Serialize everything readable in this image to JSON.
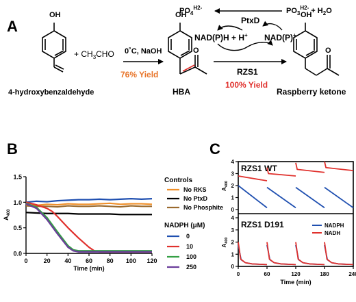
{
  "panel_a": {
    "label": "A",
    "reactant1_name": "4-hydroxybenzaldehyde",
    "reactant1_oh": "OH",
    "plus_acetaldehyde": "+ CH",
    "acetaldehyde_sub": "3",
    "acetaldehyde_tail": "CHO",
    "conditions": "0˚C, NaOH",
    "yield1": "76% Yield",
    "intermediate_name": "HBA",
    "intermediate_oh": "OH",
    "enzyme": "RZS1",
    "yield2": "100% Yield",
    "product_name": "Raspberry ketone",
    "product_oh": "OH",
    "ptxd": "PtxD",
    "phosphate": "PO",
    "phosphate_sub": "4",
    "phosphate_sup": "H2-",
    "phosphite": "PO",
    "phosphite_sub": "3",
    "phosphite_sup": "H2-",
    "phosphite_tail": " + H",
    "phosphite_tail_sub": "2",
    "phosphite_tail_end": "O",
    "nadph_left": "NAD(P)H + H",
    "nadph_left_sup": "+",
    "nadp_right": "NAD(P)",
    "nadp_right_sup": "+",
    "yield1_color": "#e8752a",
    "yield2_color": "#e0312d",
    "double_bond_color": "#e0312d"
  },
  "panel_b": {
    "label": "B",
    "chart_data": {
      "type": "line",
      "xlabel": "Time (min)",
      "ylabel": "A",
      "ylabel_sub": "400",
      "xlim": [
        0,
        120
      ],
      "ylim": [
        0,
        1.5
      ],
      "xticks": [
        "0",
        "20",
        "40",
        "60",
        "80",
        "100",
        "120"
      ],
      "yticks": [
        "0.0",
        "0.5",
        "1.0",
        "1.5"
      ],
      "series": [
        {
          "name": "No RKS",
          "group": "Controls",
          "color": "#f0902a",
          "x": [
            0,
            10,
            20,
            30,
            40,
            50,
            60,
            70,
            80,
            90,
            100,
            110,
            120
          ],
          "y": [
            0.95,
            0.94,
            0.96,
            0.95,
            0.97,
            0.96,
            0.96,
            0.97,
            0.98,
            0.96,
            0.97,
            0.97,
            0.96
          ]
        },
        {
          "name": "No PtxD",
          "group": "Controls",
          "color": "#000000",
          "x": [
            0,
            10,
            20,
            30,
            40,
            50,
            60,
            70,
            80,
            90,
            100,
            110,
            120
          ],
          "y": [
            0.8,
            0.79,
            0.78,
            0.78,
            0.78,
            0.77,
            0.77,
            0.77,
            0.77,
            0.76,
            0.76,
            0.76,
            0.76
          ]
        },
        {
          "name": "No Phosphite",
          "group": "Controls",
          "color": "#9a6a2e",
          "x": [
            0,
            10,
            20,
            30,
            40,
            50,
            60,
            70,
            80,
            90,
            100,
            110,
            120
          ],
          "y": [
            0.93,
            0.92,
            0.92,
            0.91,
            0.93,
            0.92,
            0.92,
            0.93,
            0.92,
            0.91,
            0.93,
            0.92,
            0.92
          ]
        },
        {
          "name": "0",
          "group": "NADPH (μM)",
          "color": "#1f4fb0",
          "x": [
            0,
            10,
            20,
            30,
            40,
            50,
            60,
            70,
            80,
            90,
            100,
            110,
            120
          ],
          "y": [
            1.0,
            1.02,
            1.01,
            1.03,
            1.04,
            1.05,
            1.05,
            1.06,
            1.05,
            1.06,
            1.07,
            1.06,
            1.07
          ]
        },
        {
          "name": "10",
          "group": "NADPH (μM)",
          "color": "#e0312d",
          "x": [
            0,
            10,
            20,
            25,
            30,
            40,
            50,
            60,
            65,
            70,
            80,
            100,
            120
          ],
          "y": [
            1.0,
            0.95,
            0.88,
            0.82,
            0.72,
            0.5,
            0.3,
            0.12,
            0.05,
            0.03,
            0.03,
            0.03,
            0.03
          ]
        },
        {
          "name": "100",
          "group": "NADPH (μM)",
          "color": "#35a045",
          "x": [
            0,
            10,
            20,
            30,
            40,
            45,
            50,
            60,
            80,
            100,
            120
          ],
          "y": [
            0.98,
            0.9,
            0.7,
            0.42,
            0.15,
            0.07,
            0.05,
            0.05,
            0.05,
            0.05,
            0.05
          ]
        },
        {
          "name": "250",
          "group": "NADPH (μM)",
          "color": "#6a3d9a",
          "x": [
            0,
            10,
            20,
            30,
            40,
            45,
            50,
            60,
            80,
            100,
            120
          ],
          "y": [
            0.97,
            0.88,
            0.66,
            0.38,
            0.12,
            0.05,
            0.03,
            0.03,
            0.03,
            0.03,
            0.03
          ]
        }
      ],
      "legend_placement": "right",
      "legend_group1_title": "Controls",
      "legend_group2_title": "NADPH (μM)"
    }
  },
  "panel_c": {
    "label": "C",
    "chart_data": [
      {
        "type": "line",
        "title": "RZS1 WT",
        "ylabel": "A",
        "ylabel_sub": "400",
        "xlim": [
          0,
          240
        ],
        "ylim": [
          0,
          4
        ],
        "yticks": [
          "0",
          "1",
          "2",
          "3",
          "4"
        ],
        "series": [
          {
            "name": "NADPH",
            "color": "#1f4fb0",
            "segments": [
              [
                [
                  0,
                  2.0
                ],
                [
                  60,
                  0.15
                ]
              ],
              [
                [
                  60,
                  1.85
                ],
                [
                  120,
                  0.15
                ]
              ],
              [
                [
                  120,
                  1.85
                ],
                [
                  180,
                  0.15
                ]
              ],
              [
                [
                  180,
                  1.85
                ],
                [
                  240,
                  0.15
                ]
              ]
            ]
          },
          {
            "name": "NADH",
            "color": "#e0312d",
            "segments": [
              [
                [
                  0,
                  2.8
                ],
                [
                  60,
                  2.4
                ]
              ],
              [
                [
                  60,
                  3.5
                ],
                [
                  63,
                  3.0
                ],
                [
                  120,
                  2.8
                ]
              ],
              [
                [
                  120,
                  3.9
                ],
                [
                  123,
                  3.35
                ],
                [
                  180,
                  3.1
                ]
              ],
              [
                [
                  180,
                  4.0
                ],
                [
                  183,
                  3.5
                ],
                [
                  240,
                  3.25
                ]
              ]
            ]
          }
        ]
      },
      {
        "type": "line",
        "title": "RZS1 D191",
        "ylabel": "A",
        "ylabel_sub": "400",
        "xlabel": "Time (min)",
        "xlim": [
          0,
          240
        ],
        "ylim": [
          0,
          4
        ],
        "xticks": [
          "0",
          "60",
          "120",
          "180",
          "240"
        ],
        "yticks": [
          "0",
          "1",
          "2",
          "3",
          "4"
        ],
        "legend": [
          "NADPH",
          "NADH"
        ],
        "legend_placement": "top-right",
        "series": [
          {
            "name": "NADPH",
            "color": "#1f4fb0",
            "segments": [
              [
                [
                  0,
                  1.75
                ],
                [
                  6,
                  0.55
                ],
                [
                  15,
                  0.3
                ],
                [
                  30,
                  0.2
                ],
                [
                  60,
                  0.15
                ]
              ],
              [
                [
                  60,
                  1.75
                ],
                [
                  66,
                  0.55
                ],
                [
                  75,
                  0.3
                ],
                [
                  90,
                  0.2
                ],
                [
                  120,
                  0.15
                ]
              ],
              [
                [
                  120,
                  1.75
                ],
                [
                  126,
                  0.55
                ],
                [
                  135,
                  0.3
                ],
                [
                  150,
                  0.2
                ],
                [
                  180,
                  0.15
                ]
              ],
              [
                [
                  180,
                  1.75
                ],
                [
                  186,
                  0.55
                ],
                [
                  195,
                  0.3
                ],
                [
                  210,
                  0.2
                ],
                [
                  240,
                  0.15
                ]
              ]
            ]
          },
          {
            "name": "NADH",
            "color": "#e0312d",
            "segments": [
              [
                [
                  0,
                  2.0
                ],
                [
                  5,
                  0.6
                ],
                [
                  15,
                  0.3
                ],
                [
                  30,
                  0.2
                ],
                [
                  60,
                  0.15
                ]
              ],
              [
                [
                  60,
                  2.0
                ],
                [
                  65,
                  0.6
                ],
                [
                  75,
                  0.3
                ],
                [
                  90,
                  0.2
                ],
                [
                  120,
                  0.15
                ]
              ],
              [
                [
                  120,
                  2.0
                ],
                [
                  125,
                  0.6
                ],
                [
                  135,
                  0.3
                ],
                [
                  150,
                  0.2
                ],
                [
                  180,
                  0.15
                ]
              ],
              [
                [
                  180,
                  2.0
                ],
                [
                  185,
                  0.6
                ],
                [
                  195,
                  0.3
                ],
                [
                  210,
                  0.2
                ],
                [
                  240,
                  0.15
                ]
              ]
            ]
          }
        ]
      }
    ]
  }
}
